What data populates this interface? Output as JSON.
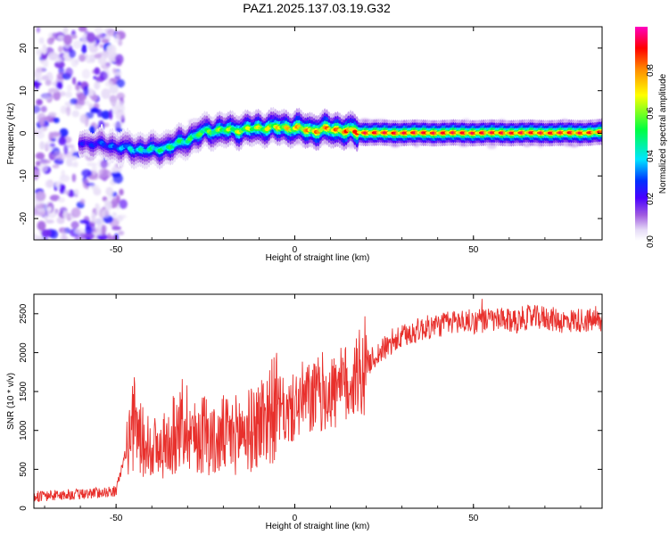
{
  "figure_title": "PAZ1.2025.137.03.19.G32",
  "colors": {
    "snr_line": "#e8302c",
    "colormap": [
      "#ffffff",
      "#d9c5f2",
      "#a05be0",
      "#7b00e6",
      "#0000ff",
      "#00e5ff",
      "#00ff40",
      "#ffff00",
      "#ff8c00",
      "#ff0000",
      "#ff00c0"
    ]
  },
  "chart_data": [
    {
      "type": "heatmap",
      "title": "PAZ1.2025.137.03.19.G32",
      "xlabel": "Height of straight line (km)",
      "ylabel": "Frequency (Hz)",
      "xlim": [
        -73,
        86
      ],
      "ylim": [
        -25,
        25
      ],
      "xticks": [
        -50,
        0,
        50
      ],
      "yticks": [
        -20,
        -10,
        0,
        10,
        20
      ],
      "colorbar": {
        "label": "Normalized spectral amplitude",
        "range": [
          0,
          1
        ],
        "ticks": [
          0.0,
          0.2,
          0.4,
          0.6,
          0.8
        ]
      },
      "ridge": {
        "x": [
          -60,
          -55,
          -50,
          -45,
          -40,
          -35,
          -30,
          -25,
          -20,
          -15,
          -10,
          -5,
          0,
          5,
          10,
          15,
          20,
          30,
          40,
          50,
          60,
          70,
          80,
          86
        ],
        "frequency": [
          -2.3,
          -2.5,
          -3.2,
          -3.8,
          -4.0,
          -3.2,
          -1.5,
          0.5,
          0.7,
          0.8,
          1.2,
          1.4,
          1.2,
          0.6,
          1.0,
          0.5,
          0.1,
          0.1,
          0.1,
          0.1,
          0.1,
          0.1,
          0.1,
          0.3
        ],
        "peak_amplitude": [
          0.25,
          0.3,
          0.35,
          0.45,
          0.5,
          0.55,
          0.55,
          0.6,
          0.65,
          0.7,
          0.7,
          0.75,
          0.8,
          0.85,
          0.85,
          0.9,
          0.95,
          0.95,
          0.95,
          0.95,
          0.95,
          0.95,
          0.95,
          0.9
        ]
      },
      "noise_region_x": [
        -73,
        -48
      ]
    },
    {
      "type": "line",
      "xlabel": "Height of straight line (km)",
      "ylabel": "SNR (10 * v/v)",
      "xlim": [
        -73,
        86
      ],
      "ylim": [
        0,
        2750
      ],
      "xticks": [
        -50,
        0,
        50
      ],
      "yticks": [
        0,
        500,
        1000,
        1500,
        2000,
        2500
      ],
      "series": [
        {
          "x": [
            -73,
            -70,
            -65,
            -60,
            -55,
            -50,
            -48,
            -46,
            -45,
            -42,
            -40,
            -38,
            -35,
            -32,
            -30,
            -28,
            -25,
            -22,
            -20,
            -18,
            -15,
            -12,
            -10,
            -8,
            -5,
            -2,
            0,
            2,
            5,
            8,
            10,
            12,
            15,
            18,
            20,
            25,
            30,
            35,
            40,
            45,
            50,
            55,
            60,
            65,
            70,
            75,
            80,
            86
          ],
          "y": [
            150,
            160,
            170,
            180,
            200,
            220,
            600,
            900,
            1100,
            800,
            850,
            700,
            900,
            1000,
            1100,
            900,
            1000,
            800,
            950,
            900,
            1000,
            1000,
            1100,
            1200,
            1300,
            1200,
            1300,
            1400,
            1400,
            1500,
            1500,
            1500,
            1600,
            1750,
            1850,
            2050,
            2200,
            2300,
            2350,
            2400,
            2400,
            2420,
            2400,
            2450,
            2450,
            2400,
            2420,
            2400
          ]
        }
      ]
    }
  ]
}
